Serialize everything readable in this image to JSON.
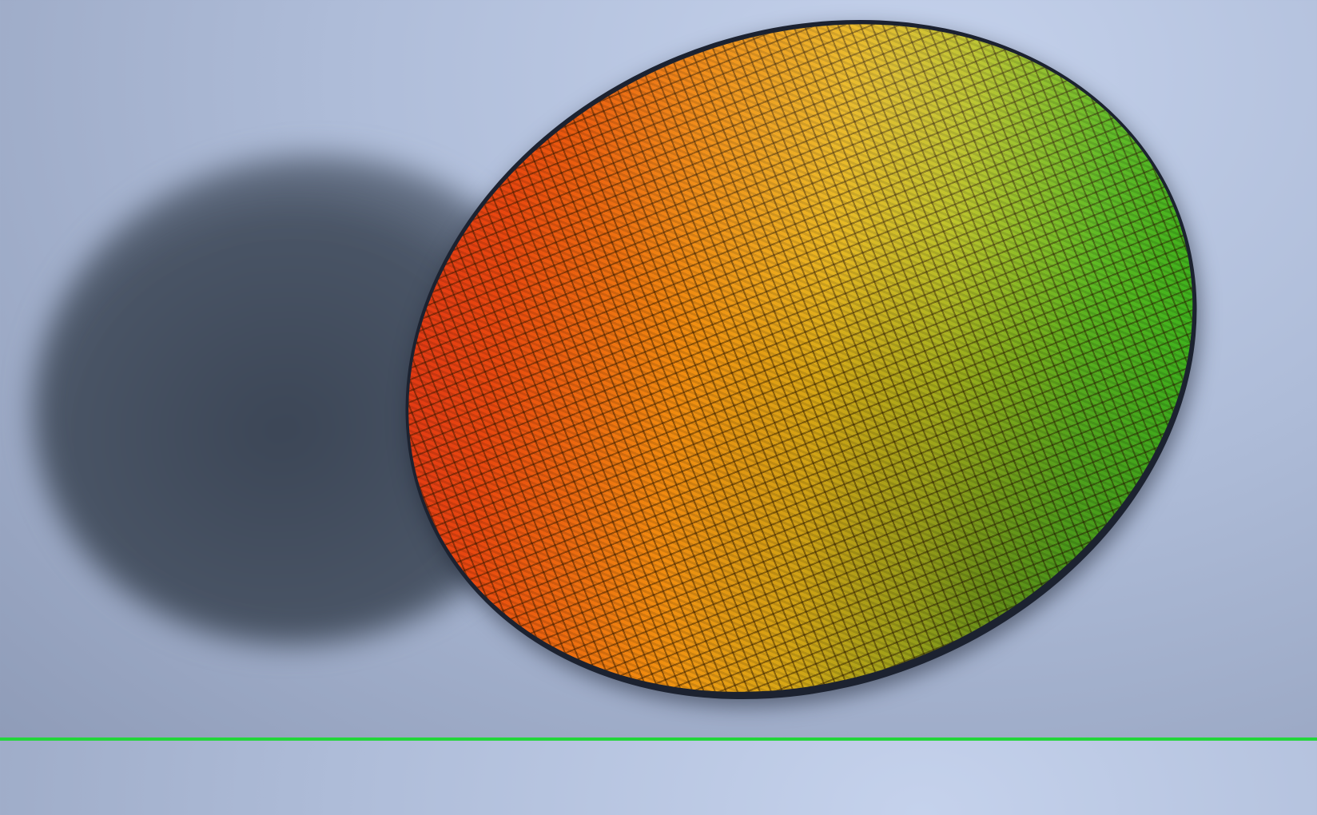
{
  "scene": {
    "subject": "wafer",
    "colors": {
      "background": "#aebcd8",
      "shadow": "#3c4656",
      "wafer_red": "#d8261a",
      "wafer_orange": "#f08a10",
      "wafer_yellow": "#e8b418",
      "wafer_green": "#1ea81a",
      "bottom_line": "#22d63a"
    }
  }
}
